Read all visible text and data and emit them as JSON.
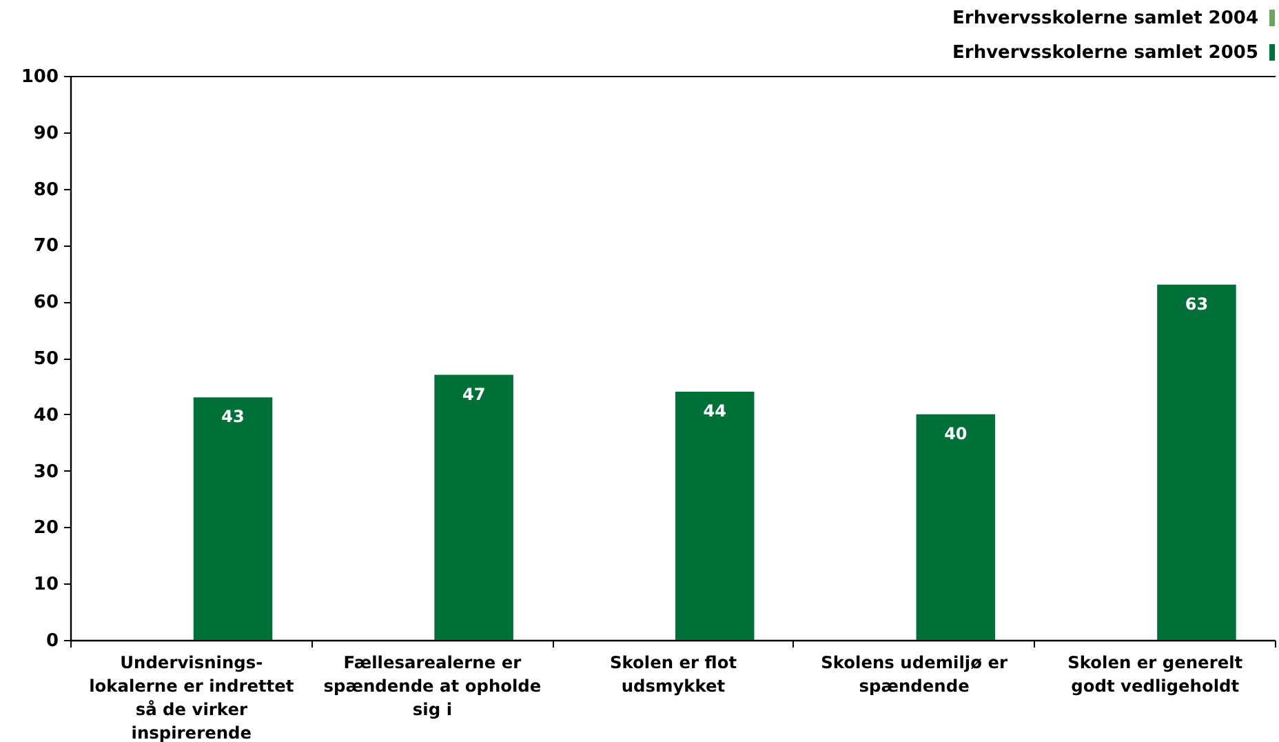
{
  "chart_data": {
    "type": "bar",
    "categories": [
      "Undervisnings-lokalerne er indrettet så de virker inspirerende",
      "Fællesarealerne er spændende at opholde sig i",
      "Skolen er flot udsmykket",
      "Skolens udemiljø er spændende",
      "Skolen er generelt godt vedligeholdt"
    ],
    "series": [
      {
        "name": "Erhvervsskolerne samlet 2004",
        "color": "#6fa366",
        "values": [
          null,
          null,
          null,
          null,
          null
        ]
      },
      {
        "name": "Erhvervsskolerne samlet 2005",
        "color": "#007038",
        "values": [
          43,
          47,
          44,
          40,
          63
        ]
      }
    ],
    "ylim": [
      0,
      100
    ],
    "yticks": [
      0,
      10,
      20,
      30,
      40,
      50,
      60,
      70,
      80,
      90,
      100
    ],
    "legend": "top right",
    "data_labels": true
  }
}
